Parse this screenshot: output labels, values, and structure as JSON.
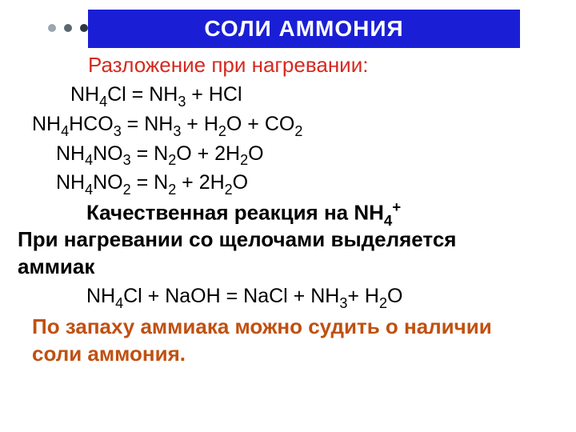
{
  "colors": {
    "header_bg": "#1a1fd6",
    "header_text": "#ffffff",
    "subtitle_text": "#d6291f",
    "body_text": "#000000",
    "smell_text": "#c05010",
    "bullet1": "#9aa6b0",
    "bullet2": "#5a6770",
    "bullet3": "#2a3740"
  },
  "header": {
    "title": "СОЛИ АММОНИЯ"
  },
  "subtitle": "Разложение при нагревании:",
  "equations": {
    "eq1": {
      "lhs": "NH",
      "lhs_sub": "4",
      "lhs2": "Cl",
      "rhs": "NH",
      "rhs_sub": "3",
      "rhs2": " + HCl",
      "indent": 48
    },
    "eq2": {
      "lhs": "NH",
      "lhs_sub": "4",
      "lhs2": "HCO",
      "lhs2_sub": "3",
      "rhs": "NH",
      "rhs_sub": "3",
      "rhs2": " + H",
      "rhs2_sub": "2",
      "rhs3": "O + CO",
      "rhs3_sub": "2",
      "indent": 0
    },
    "eq3": {
      "lhs": "NH",
      "lhs_sub": "4",
      "lhs2": "NO",
      "lhs2_sub": "3",
      "rhs": "N",
      "rhs_sub": "2",
      "rhs2": "O + 2H",
      "rhs2_sub": "2",
      "rhs3": "O",
      "indent": 30
    },
    "eq4": {
      "lhs": "NH",
      "lhs_sub": "4",
      "lhs2": "NO",
      "lhs2_sub": "2",
      "rhs": "N",
      "rhs_sub": "2",
      "rhs2": " + 2H",
      "rhs2_sub": "2",
      "rhs3": "O",
      "indent": 30
    }
  },
  "qualitative": {
    "title_prefix": "Качественная реакция на NH",
    "title_sub": "4",
    "title_sup": "+",
    "line1": "При нагревании со щелочами выделяется",
    "line2": "аммиак",
    "eq_lhs": "NH",
    "eq_lhs_sub": "4",
    "eq_mid": "Cl + NaOH   =  NaCl + NH",
    "eq_mid_sub": "3",
    "eq_rhs": "+ H",
    "eq_rhs_sub": "2",
    "eq_end": "O"
  },
  "smell": {
    "line1": "По запаху аммиака можно судить о наличии",
    "line2": "соли аммония."
  }
}
